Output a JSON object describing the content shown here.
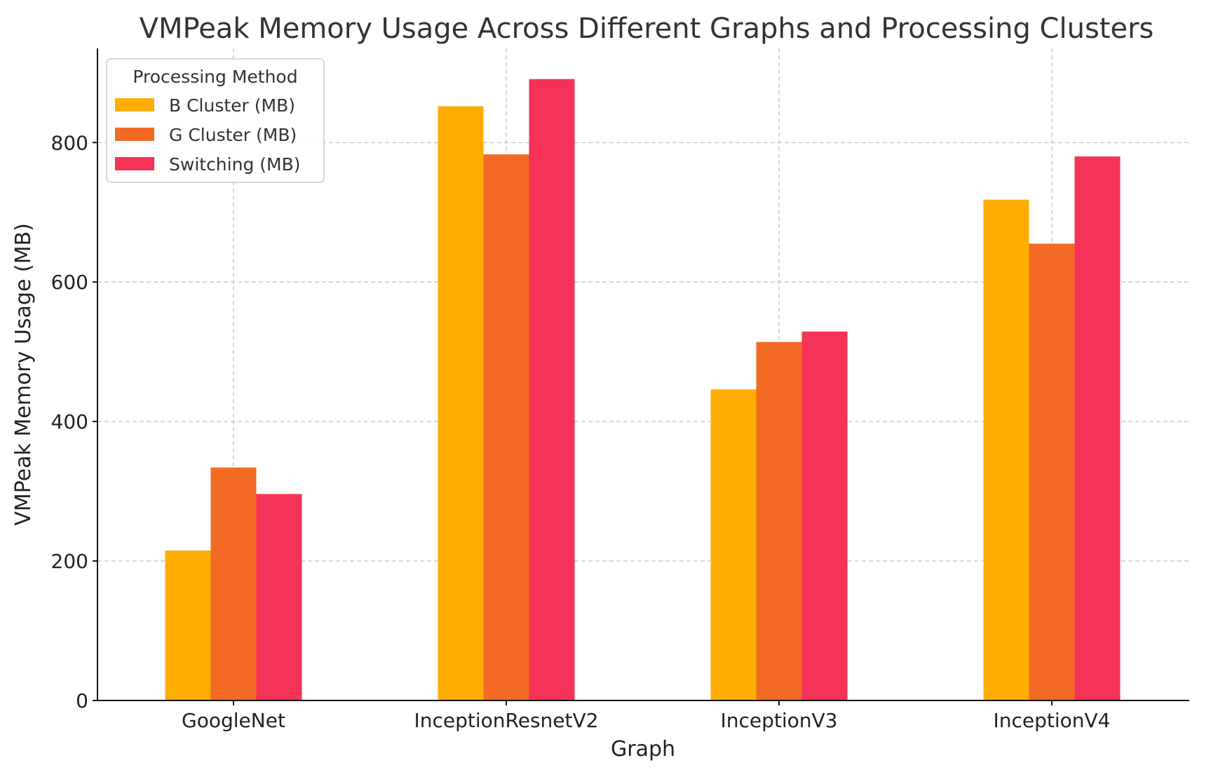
{
  "chart_data": {
    "type": "bar",
    "title": "VMPeak Memory Usage Across Different Graphs and Processing Clusters",
    "xlabel": "Graph",
    "ylabel": "VMPeak Memory Usage (MB)",
    "categories": [
      "GoogleNet",
      "InceptionResnetV2",
      "InceptionV3",
      "InceptionV4"
    ],
    "series": [
      {
        "name": "B Cluster (MB)",
        "color": "#FFAD00",
        "values": [
          215,
          852,
          446,
          718
        ]
      },
      {
        "name": "G Cluster (MB)",
        "color": "#F26A23",
        "values": [
          334,
          783,
          514,
          655
        ]
      },
      {
        "name": "Switching (MB)",
        "color": "#F53257",
        "values": [
          296,
          891,
          529,
          780
        ]
      }
    ],
    "ylim": [
      0,
      935
    ],
    "yticks": [
      0,
      200,
      400,
      600,
      800
    ],
    "grid": true,
    "legend": {
      "title": "Processing Method",
      "position": "top-left"
    }
  }
}
